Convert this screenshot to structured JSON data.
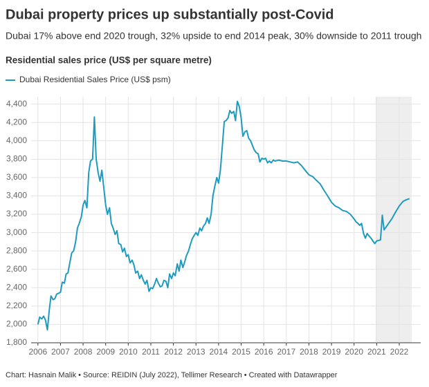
{
  "chart_data": {
    "type": "line",
    "title": "Dubai property prices up substantially post-Covid",
    "subtitle": "Dubai 17% above end 2020 trough, 32% upside to end 2014 peak, 30% downside to 2011 trough",
    "y_label": "Residential sales price (US$ per square metre)",
    "footer": "Chart: Hasnain Malik • Source: REIDIN (July 2022), Tellimer Research • Created with Datawrapper",
    "x": [
      2006.0,
      2006.08,
      2006.17,
      2006.25,
      2006.33,
      2006.42,
      2006.5,
      2006.58,
      2006.67,
      2006.75,
      2006.83,
      2006.92,
      2007.0,
      2007.08,
      2007.17,
      2007.25,
      2007.33,
      2007.42,
      2007.5,
      2007.58,
      2007.67,
      2007.75,
      2007.83,
      2007.92,
      2008.0,
      2008.08,
      2008.17,
      2008.25,
      2008.33,
      2008.42,
      2008.5,
      2008.58,
      2008.67,
      2008.75,
      2008.83,
      2008.92,
      2009.0,
      2009.08,
      2009.17,
      2009.25,
      2009.33,
      2009.42,
      2009.5,
      2009.58,
      2009.67,
      2009.75,
      2009.83,
      2009.92,
      2010.0,
      2010.08,
      2010.17,
      2010.25,
      2010.33,
      2010.42,
      2010.5,
      2010.58,
      2010.67,
      2010.75,
      2010.83,
      2010.92,
      2011.0,
      2011.08,
      2011.17,
      2011.25,
      2011.33,
      2011.42,
      2011.5,
      2011.58,
      2011.67,
      2011.75,
      2011.83,
      2011.92,
      2012.0,
      2012.08,
      2012.17,
      2012.25,
      2012.33,
      2012.42,
      2012.5,
      2012.58,
      2012.67,
      2012.75,
      2012.83,
      2012.92,
      2013.0,
      2013.08,
      2013.17,
      2013.25,
      2013.33,
      2013.42,
      2013.5,
      2013.58,
      2013.67,
      2013.75,
      2013.83,
      2013.92,
      2014.0,
      2014.08,
      2014.17,
      2014.25,
      2014.33,
      2014.42,
      2014.5,
      2014.58,
      2014.67,
      2014.75,
      2014.83,
      2014.92,
      2015.0,
      2015.08,
      2015.17,
      2015.25,
      2015.33,
      2015.42,
      2015.5,
      2015.58,
      2015.67,
      2015.75,
      2015.83,
      2015.92,
      2016.0,
      2016.08,
      2016.17,
      2016.25,
      2016.33,
      2016.42,
      2016.5,
      2016.67,
      2016.83,
      2017.0,
      2017.17,
      2017.33,
      2017.5,
      2017.67,
      2017.83,
      2018.0,
      2018.17,
      2018.33,
      2018.5,
      2018.67,
      2018.83,
      2019.0,
      2019.17,
      2019.33,
      2019.5,
      2019.67,
      2019.83,
      2020.0,
      2020.08,
      2020.17,
      2020.25,
      2020.33,
      2020.42,
      2020.5,
      2020.58,
      2020.67,
      2020.75,
      2020.83,
      2020.92,
      2021.0,
      2021.17,
      2021.25,
      2021.33,
      2021.5,
      2021.67,
      2021.83,
      2022.0,
      2022.17,
      2022.33,
      2022.45
    ],
    "series": [
      {
        "name": "Dubai Residential Sales Price (US$ psm)",
        "color": "#1d9bbf",
        "values": [
          2000,
          2080,
          2060,
          2090,
          2050,
          1940,
          2150,
          2310,
          2270,
          2280,
          2330,
          2340,
          2350,
          2460,
          2450,
          2550,
          2560,
          2680,
          2780,
          2800,
          2900,
          3050,
          3100,
          3170,
          3300,
          3350,
          3270,
          3650,
          3780,
          3800,
          4260,
          3800,
          3650,
          3560,
          3680,
          3480,
          3300,
          3200,
          3270,
          3100,
          3050,
          2980,
          3020,
          2880,
          2870,
          2790,
          2830,
          2740,
          2760,
          2670,
          2700,
          2650,
          2560,
          2580,
          2500,
          2540,
          2480,
          2440,
          2480,
          2360,
          2400,
          2390,
          2440,
          2500,
          2450,
          2410,
          2420,
          2480,
          2470,
          2400,
          2550,
          2500,
          2560,
          2530,
          2660,
          2580,
          2700,
          2620,
          2680,
          2750,
          2800,
          2870,
          2930,
          2970,
          3000,
          2970,
          3050,
          3020,
          3070,
          3100,
          3160,
          3100,
          3200,
          3400,
          3500,
          3600,
          3540,
          3680,
          3950,
          4210,
          4220,
          4250,
          4330,
          4300,
          4320,
          4220,
          4430,
          4370,
          4250,
          4050,
          4100,
          4110,
          4030,
          4000,
          3950,
          3900,
          3870,
          3860,
          3770,
          3810,
          3800,
          3810,
          3760,
          3780,
          3760,
          3790,
          3780,
          3790,
          3780,
          3780,
          3770,
          3760,
          3770,
          3730,
          3680,
          3630,
          3610,
          3570,
          3530,
          3460,
          3400,
          3330,
          3290,
          3270,
          3240,
          3230,
          3200,
          3150,
          3120,
          3100,
          3080,
          3100,
          2990,
          2940,
          2990,
          2960,
          2940,
          2910,
          2880,
          2910,
          2920,
          3190,
          3030,
          3090,
          3150,
          3220,
          3290,
          3340,
          3360,
          3370
        ]
      }
    ],
    "xlim": [
      2005.7,
      2022.95
    ],
    "xticks": [
      2006,
      2007,
      2008,
      2009,
      2010,
      2011,
      2012,
      2013,
      2014,
      2015,
      2016,
      2017,
      2018,
      2019,
      2020,
      2021,
      2022
    ],
    "ylim": [
      1800,
      4480
    ],
    "yticks": [
      {
        "value": 1800,
        "label": "1,800"
      },
      {
        "value": 2000,
        "label": "2,000"
      },
      {
        "value": 2200,
        "label": "2,200"
      },
      {
        "value": 2400,
        "label": "2,400"
      },
      {
        "value": 2600,
        "label": "2,600"
      },
      {
        "value": 2800,
        "label": "2,800"
      },
      {
        "value": 3000,
        "label": "3,000"
      },
      {
        "value": 3200,
        "label": "3,200"
      },
      {
        "value": 3400,
        "label": "3,400"
      },
      {
        "value": 3600,
        "label": "3,600"
      },
      {
        "value": 3800,
        "label": "3,800"
      },
      {
        "value": 4000,
        "label": "4,000"
      },
      {
        "value": 4200,
        "label": "4,200"
      },
      {
        "value": 4400,
        "label": "4,400"
      }
    ],
    "shaded_xrange": [
      2020.95,
      2022.55
    ],
    "grid": true
  }
}
